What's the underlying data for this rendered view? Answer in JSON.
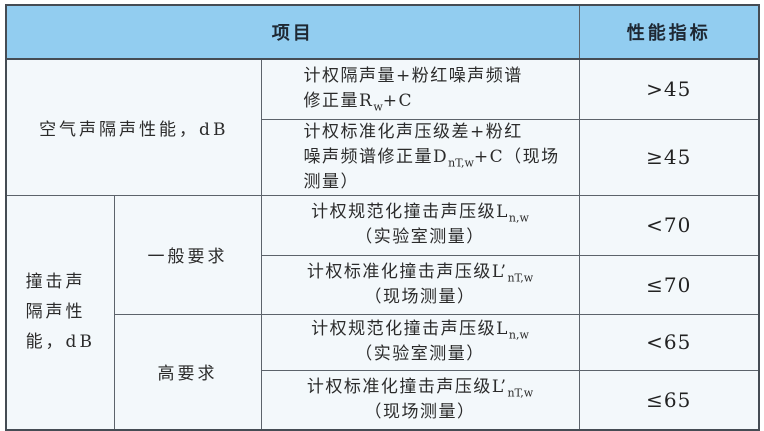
{
  "colors": {
    "header_bg": "#92cdf0",
    "cell_bg": "#f3f8fb",
    "inner_border": "#5c636b",
    "outer_border": "#454c54"
  },
  "header": {
    "project_label": "项目",
    "index_label": "性能指标"
  },
  "airborne": {
    "label": "空气声隔声性能，dB",
    "rows": [
      {
        "criterion": "计权隔声量+粉红噪声频谱\n修正量R_{w}+C",
        "value": ">45"
      },
      {
        "criterion": "计权标准化声压级差+粉红\n噪声频谱修正量D_{nT,w}+C（现场\n测量）",
        "value": "≥45"
      }
    ]
  },
  "impact": {
    "label": "撞击声\n隔声性\n能，dB",
    "groups": [
      {
        "label": "一般要求",
        "rows": [
          {
            "criterion": "计权规范化撞击声压级L_{n,w}\n（实验室测量）",
            "value": "<70"
          },
          {
            "criterion": "计权标准化撞击声压级L’_{nT,w}\n（现场测量）",
            "value": "≤70"
          }
        ]
      },
      {
        "label": "高要求",
        "rows": [
          {
            "criterion": "计权规范化撞击声压级L_{n,w}\n（实验室测量）",
            "value": "<65"
          },
          {
            "criterion": "计权标准化撞击声压级L’_{nT,w}\n（现场测量）",
            "value": "≤65"
          }
        ]
      }
    ]
  }
}
